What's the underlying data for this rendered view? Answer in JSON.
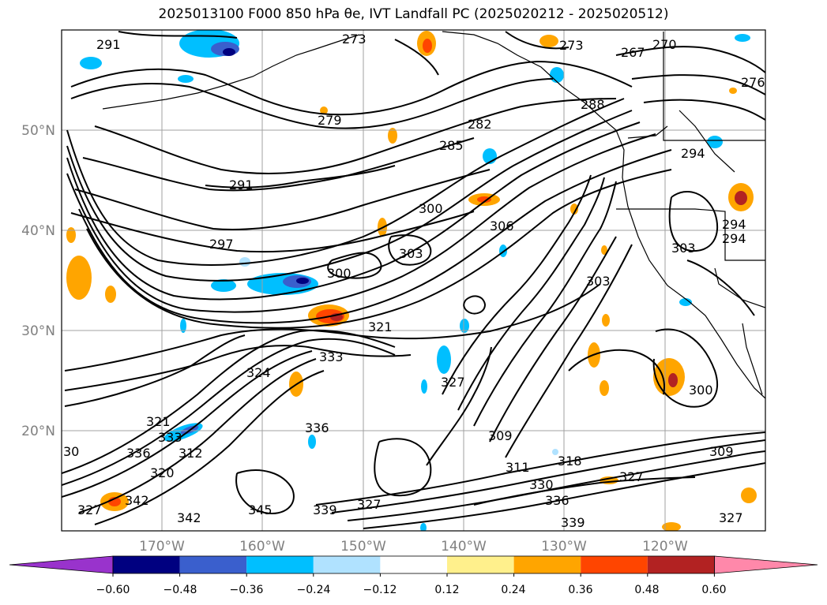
{
  "title": "2025013100 F000 850 hPa θe, IVT Landfall PC (2025020212 - 2025020512)",
  "map": {
    "lon_range": [
      -180,
      -110
    ],
    "lat_range": [
      10,
      60
    ],
    "lat_labels": [
      "20°N",
      "30°N",
      "40°N",
      "50°N"
    ],
    "lon_labels": [
      "170°W",
      "160°W",
      "150°W",
      "140°W",
      "130°W",
      "120°W"
    ],
    "contour_labels": [
      "291",
      "273",
      "273",
      "267",
      "270",
      "276",
      "279",
      "282",
      "285",
      "288",
      "291",
      "294",
      "297",
      "300",
      "300",
      "303",
      "306",
      "303",
      "294",
      "294",
      "303",
      "321",
      "324",
      "333",
      "327",
      "336",
      "321",
      "333",
      "336",
      "342",
      "309",
      "318",
      "330",
      "336",
      "339",
      "327",
      "327",
      "309",
      "300",
      "345",
      "339",
      "327",
      "342",
      "327",
      "320",
      "30",
      "312",
      "311"
    ]
  },
  "colorbar": {
    "ticks": [
      "−0.60",
      "−0.48",
      "−0.36",
      "−0.24",
      "−0.12",
      "0.12",
      "0.24",
      "0.36",
      "0.48",
      "0.60"
    ],
    "colors": [
      "#9933cc",
      "#000080",
      "#3a5fcd",
      "#00bfff",
      "#b0e2ff",
      "#ffffff",
      "#fff08c",
      "#ffa500",
      "#ff4500",
      "#b22222",
      "#ff88aa"
    ],
    "extend": "both"
  }
}
